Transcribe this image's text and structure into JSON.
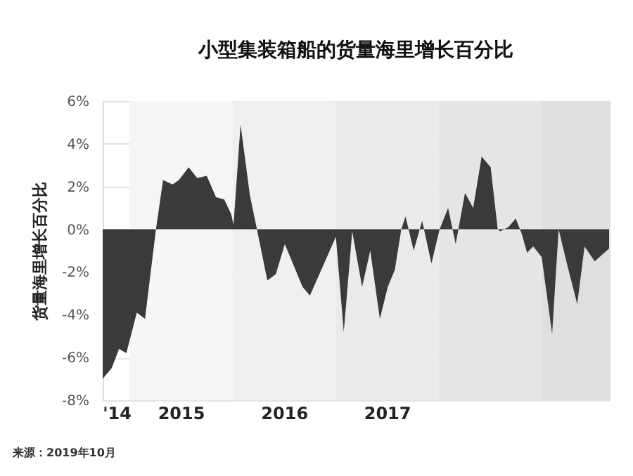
{
  "chart_data": {
    "type": "area",
    "title": "小型集装箱船的货量海里增长百分比",
    "ylabel": "货量海里增长百分比",
    "annotations": [
      "来源：2019年10月"
    ],
    "x": [
      "2014-09-27",
      "2014-10-29",
      "2014-11-24",
      "2014-12-20",
      "2015-01-26",
      "2015-02-24",
      "2015-04-04",
      "2015-04-29",
      "2015-06-02",
      "2015-06-24",
      "2015-07-29",
      "2015-08-28",
      "2015-10-01",
      "2015-11-03",
      "2015-12-02",
      "2015-12-27",
      "2016-01-04",
      "2016-01-29",
      "2016-03-02",
      "2016-03-27",
      "2016-05-03",
      "2016-06-02",
      "2016-07-04",
      "2016-09-05",
      "2016-10-01",
      "2017-01-01",
      "2017-01-29",
      "2017-02-28",
      "2017-04-04",
      "2017-05-03",
      "2017-06-06",
      "2017-07-04",
      "2017-07-29",
      "2017-08-21",
      "2017-09-05",
      "2017-10-04",
      "2017-11-03",
      "2017-12-06",
      "2018-01-04",
      "2018-02-03",
      "2018-03-02",
      "2018-04-04",
      "2018-05-03",
      "2018-06-02",
      "2018-07-04",
      "2018-07-29",
      "2018-08-07",
      "2018-09-05",
      "2018-10-01",
      "2018-10-22",
      "2018-11-10",
      "2018-12-02",
      "2019-01-01",
      "2019-02-07",
      "2019-03-02",
      "2019-04-04",
      "2019-05-07",
      "2019-06-02",
      "2019-07-08",
      "2019-08-28"
    ],
    "series": [
      {
        "color": "#3a3a3a",
        "values": [
          -7.0,
          -6.5,
          -5.6,
          -5.8,
          -3.9,
          -4.2,
          0,
          2.3,
          2.1,
          2.3,
          2.9,
          2.4,
          2.5,
          1.5,
          1.4,
          0.7,
          0.2,
          4.9,
          1.6,
          0,
          -2.4,
          -2.1,
          -0.7,
          -2.7,
          -3.1,
          -0.35,
          -4.8,
          -0.1,
          -2.7,
          -1.0,
          -4.2,
          -2.7,
          -1.9,
          0,
          0.6,
          -1.0,
          0.4,
          -1.6,
          0,
          1.0,
          -0.7,
          1.7,
          1.0,
          3.4,
          2.9,
          0,
          -0.1,
          0.1,
          0.5,
          -0.2,
          -1.1,
          -0.8,
          -1.3,
          -4.9,
          0,
          -1.8,
          -3.5,
          -0.8,
          -1.5,
          -0.9
        ]
      }
    ],
    "xlim": [
      "2014-09-27",
      "2019-08-28"
    ],
    "xticks": [
      {
        "value": "2014-11-15",
        "label": "'14"
      },
      {
        "value": "2015-07-01",
        "label": "2015"
      },
      {
        "value": "2016-07-01",
        "label": "2016"
      },
      {
        "value": "2017-07-01",
        "label": "2017"
      }
    ],
    "ylim": [
      -8,
      6
    ],
    "yticks": [
      {
        "value": -8,
        "label": "-8%"
      },
      {
        "value": -6,
        "label": "-6%"
      },
      {
        "value": -4,
        "label": "-4%"
      },
      {
        "value": -2,
        "label": "-2%"
      },
      {
        "value": 0,
        "label": "0%"
      },
      {
        "value": 2,
        "label": "2%"
      },
      {
        "value": 4,
        "label": "4%"
      },
      {
        "value": 6,
        "label": "6%"
      }
    ],
    "bands": [
      {
        "axis": "x",
        "from": "2015-01-01",
        "to": "2016-01-01",
        "color": "#f6f6f6"
      },
      {
        "axis": "x",
        "from": "2016-01-01",
        "to": "2017-01-01",
        "color": "#f0f0f0"
      },
      {
        "axis": "x",
        "from": "2017-01-01",
        "to": "2018-01-01",
        "color": "#ebebeb"
      },
      {
        "axis": "x",
        "from": "2018-01-01",
        "to": "2019-01-01",
        "color": "#e6e6e6"
      },
      {
        "axis": "x",
        "from": "2019-01-01",
        "to": "2019-08-28",
        "color": "#dfdfdf"
      }
    ],
    "grid": "y"
  }
}
